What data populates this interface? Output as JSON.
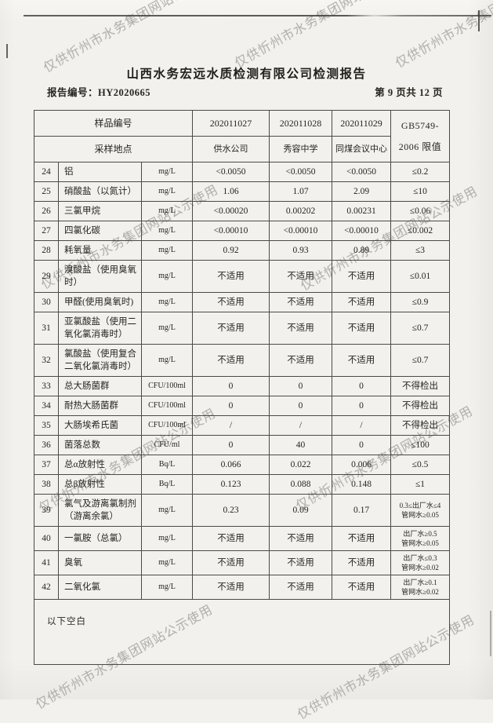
{
  "page": {
    "title": "山西水务宏远水质检测有限公司检测报告",
    "report_no": "报告编号：HY2020665",
    "page_info": "第 9 页共 12 页"
  },
  "watermark": {
    "text": "仅供忻州市水务集团网站公示使用"
  },
  "table": {
    "header": {
      "sample_no_label": "样品编号",
      "location_label": "采样地点",
      "sample_ids": [
        "202011027",
        "202011028",
        "202011029"
      ],
      "locations": [
        "供水公司",
        "秀容中学",
        "同煤会议中心"
      ],
      "standard_line1": "GB5749-",
      "standard_line2": "2006 限值"
    },
    "rows": [
      {
        "no": "24",
        "name": "铝",
        "unit": "mg/L",
        "values": [
          "<0.0050",
          "<0.0050",
          "<0.0050"
        ],
        "limit": [
          "≤0.2"
        ]
      },
      {
        "no": "25",
        "name": "硝酸盐（以氮计）",
        "unit": "mg/L",
        "values": [
          "1.06",
          "1.07",
          "2.09"
        ],
        "limit": [
          "≤10"
        ]
      },
      {
        "no": "26",
        "name": "三氯甲烷",
        "unit": "mg/L",
        "values": [
          "<0.00020",
          "0.00202",
          "0.00231"
        ],
        "limit": [
          "≤0.06"
        ]
      },
      {
        "no": "27",
        "name": "四氯化碳",
        "unit": "mg/L",
        "values": [
          "<0.00010",
          "<0.00010",
          "<0.00010"
        ],
        "limit": [
          "≤0.002"
        ]
      },
      {
        "no": "28",
        "name": "耗氧量",
        "unit": "mg/L",
        "values": [
          "0.92",
          "0.93",
          "0.89"
        ],
        "limit": [
          "≤3"
        ]
      },
      {
        "no": "29",
        "name": "溴酸盐（使用臭氧时）",
        "unit": "mg/L",
        "values": [
          "不适用",
          "不适用",
          "不适用"
        ],
        "limit": [
          "≤0.01"
        ]
      },
      {
        "no": "30",
        "name": "甲醛(使用臭氧时)",
        "unit": "mg/L",
        "values": [
          "不适用",
          "不适用",
          "不适用"
        ],
        "limit": [
          "≤0.9"
        ]
      },
      {
        "no": "31",
        "name": "亚氯酸盐（使用二氧化氯消毒时）",
        "unit": "mg/L",
        "values": [
          "不适用",
          "不适用",
          "不适用"
        ],
        "limit": [
          "≤0.7"
        ]
      },
      {
        "no": "32",
        "name": "氯酸盐（使用复合二氧化氯消毒时）",
        "unit": "mg/L",
        "values": [
          "不适用",
          "不适用",
          "不适用"
        ],
        "limit": [
          "≤0.7"
        ]
      },
      {
        "no": "33",
        "name": "总大肠菌群",
        "unit": "CFU/100ml",
        "values": [
          "0",
          "0",
          "0"
        ],
        "limit": [
          "不得检出"
        ]
      },
      {
        "no": "34",
        "name": "耐热大肠菌群",
        "unit": "CFU/100ml",
        "values": [
          "0",
          "0",
          "0"
        ],
        "limit": [
          "不得检出"
        ]
      },
      {
        "no": "35",
        "name": "大肠埃希氏菌",
        "unit": "CFU/100ml",
        "values": [
          "/",
          "/",
          "/"
        ],
        "limit": [
          "不得检出"
        ]
      },
      {
        "no": "36",
        "name": "菌落总数",
        "unit": "CFU/ml",
        "values": [
          "0",
          "40",
          "0"
        ],
        "limit": [
          "≤100"
        ]
      },
      {
        "no": "37",
        "name": "总α放射性",
        "unit": "Bq/L",
        "values": [
          "0.066",
          "0.022",
          "0.006"
        ],
        "limit": [
          "≤0.5"
        ]
      },
      {
        "no": "38",
        "name": "总β放射性",
        "unit": "Bq/L",
        "values": [
          "0.123",
          "0.088",
          "0.148"
        ],
        "limit": [
          "≤1"
        ]
      },
      {
        "no": "39",
        "name": "氯气及游离氯制剂（游离余氯）",
        "unit": "mg/L",
        "values": [
          "0.23",
          "0.09",
          "0.17"
        ],
        "limit": [
          "0.3≤出厂水≤4",
          "管网水≥0.05"
        ]
      },
      {
        "no": "40",
        "name": "一氯胺（总氯）",
        "unit": "mg/L",
        "values": [
          "不适用",
          "不适用",
          "不适用"
        ],
        "limit": [
          "出厂水≥0.5",
          "管网水≥0.05"
        ]
      },
      {
        "no": "41",
        "name": "臭氧",
        "unit": "mg/L",
        "values": [
          "不适用",
          "不适用",
          "不适用"
        ],
        "limit": [
          "出厂水≤0.3",
          "管网水≥0.02"
        ]
      },
      {
        "no": "42",
        "name": "二氧化氯",
        "unit": "mg/L",
        "values": [
          "不适用",
          "不适用",
          "不适用"
        ],
        "limit": [
          "出厂水≥0.1",
          "管网水≥0.02"
        ]
      }
    ],
    "footer_note": "以下空白"
  }
}
